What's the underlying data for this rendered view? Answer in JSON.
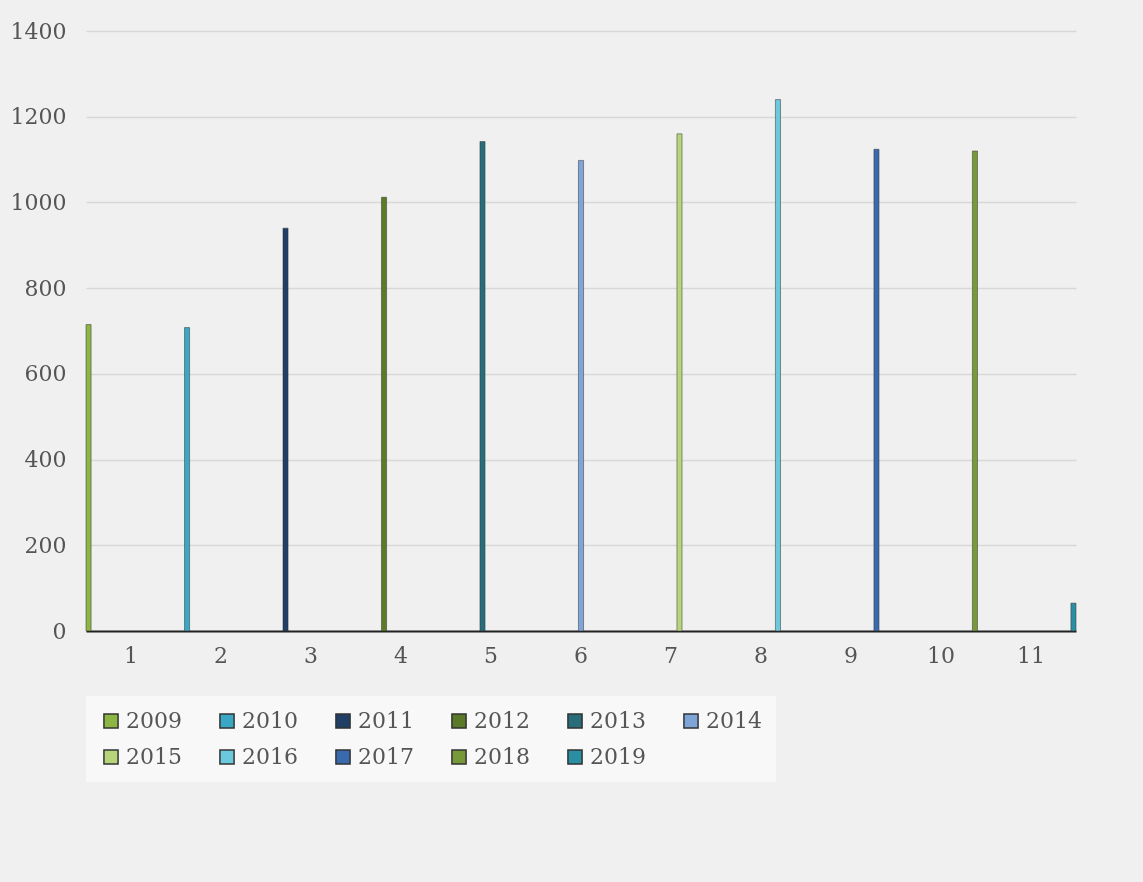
{
  "chart_data": {
    "type": "bar",
    "categories": [
      "1",
      "2",
      "3",
      "4",
      "5",
      "6",
      "7",
      "8",
      "9",
      "10",
      "11"
    ],
    "series": [
      {
        "name": "2009",
        "color": "#8db543",
        "values": [
          715,
          null,
          null,
          null,
          null,
          null,
          null,
          null,
          null,
          null,
          null
        ]
      },
      {
        "name": "2010",
        "color": "#3aa8c4",
        "values": [
          null,
          708,
          null,
          null,
          null,
          null,
          null,
          null,
          null,
          null,
          null
        ]
      },
      {
        "name": "2011",
        "color": "#1f3f66",
        "values": [
          null,
          null,
          940,
          null,
          null,
          null,
          null,
          null,
          null,
          null,
          null
        ]
      },
      {
        "name": "2012",
        "color": "#5a7a2a",
        "values": [
          null,
          null,
          null,
          1012,
          null,
          null,
          null,
          null,
          null,
          null,
          null
        ]
      },
      {
        "name": "2013",
        "color": "#2a6d7a",
        "values": [
          null,
          null,
          null,
          null,
          1142,
          null,
          null,
          null,
          null,
          null,
          null
        ]
      },
      {
        "name": "2014",
        "color": "#7ea4d8",
        "values": [
          null,
          null,
          null,
          null,
          null,
          1098,
          null,
          null,
          null,
          null,
          null
        ]
      },
      {
        "name": "2015",
        "color": "#b6d57a",
        "values": [
          null,
          null,
          null,
          null,
          null,
          null,
          1160,
          null,
          null,
          null,
          null
        ]
      },
      {
        "name": "2016",
        "color": "#6cc8dc",
        "values": [
          null,
          null,
          null,
          null,
          null,
          null,
          null,
          1240,
          null,
          null,
          null
        ]
      },
      {
        "name": "2017",
        "color": "#3a6aae",
        "values": [
          null,
          null,
          null,
          null,
          null,
          null,
          null,
          null,
          1124,
          null,
          null
        ]
      },
      {
        "name": "2018",
        "color": "#77993a",
        "values": [
          null,
          null,
          null,
          null,
          null,
          null,
          null,
          null,
          null,
          1120,
          null
        ]
      },
      {
        "name": "2019",
        "color": "#2a8fa3",
        "values": [
          null,
          null,
          null,
          null,
          null,
          null,
          null,
          null,
          null,
          null,
          65
        ]
      }
    ],
    "ylim": [
      0,
      1400
    ],
    "yticks": [
      0,
      200,
      400,
      600,
      800,
      1000,
      1200,
      1400
    ],
    "grid": "y",
    "legend": "bottom"
  }
}
